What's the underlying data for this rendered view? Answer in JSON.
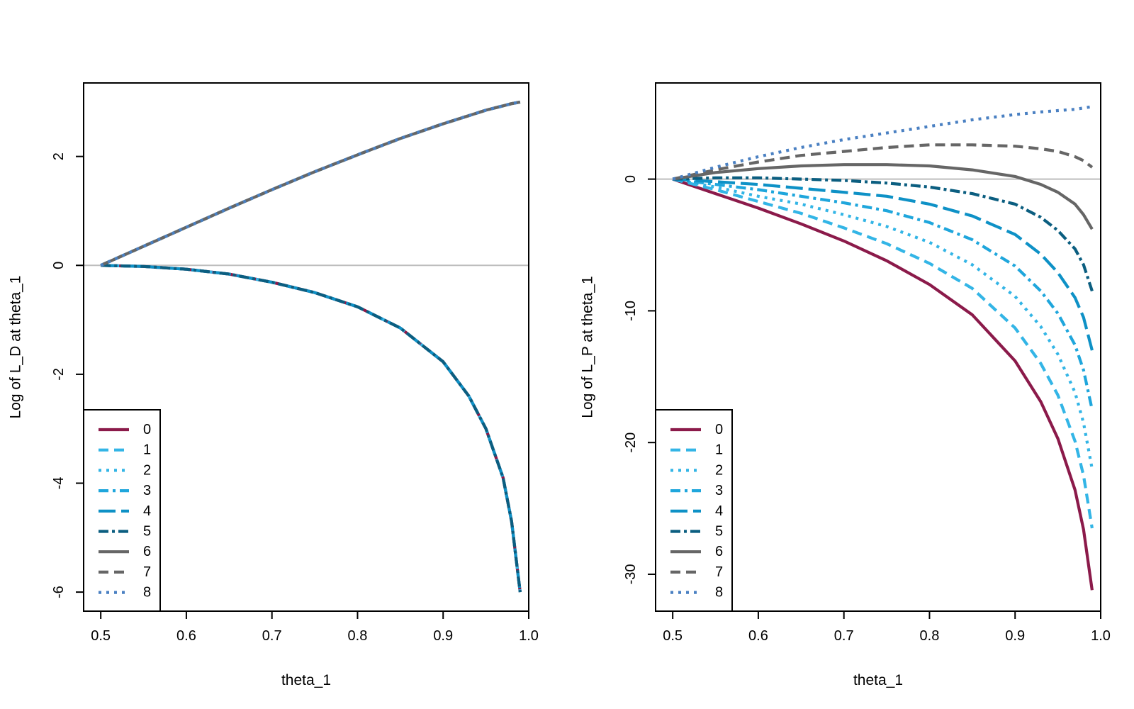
{
  "palette": {
    "0": "#8B1A4A",
    "1": "#33B5E6",
    "2": "#33B5E6",
    "3": "#1FA6DC",
    "4": "#0E91C6",
    "5": "#0B5E80",
    "6": "#666666",
    "7": "#666666",
    "8": "#4A80C2",
    "zero_line": "#BEBEBE"
  },
  "chart_data": [
    {
      "type": "line",
      "xlabel": "theta_1",
      "ylabel": "Log of L_D at theta_1",
      "xlim": [
        0.48,
        1.0
      ],
      "ylim": [
        -6.35,
        3.35
      ],
      "xticks": [
        "0.5",
        "0.6",
        "0.7",
        "0.8",
        "0.9",
        "1.0"
      ],
      "yticks": [
        "-6",
        "-4",
        "-2",
        "0",
        "2"
      ],
      "legend": {
        "position": "bottom-left",
        "entries": [
          "0",
          "1",
          "2",
          "3",
          "4",
          "5",
          "6",
          "7",
          "8"
        ]
      },
      "hline": 0,
      "x": [
        0.5,
        0.55,
        0.6,
        0.65,
        0.7,
        0.75,
        0.8,
        0.85,
        0.9,
        0.93,
        0.95,
        0.97,
        0.98,
        0.99
      ],
      "series": [
        {
          "name": "0",
          "values": [
            0,
            -0.02,
            -0.07,
            -0.16,
            -0.31,
            -0.5,
            -0.76,
            -1.15,
            -1.77,
            -2.4,
            -3.0,
            -3.9,
            -4.7,
            -6.0
          ]
        },
        {
          "name": "1",
          "values": [
            0,
            0.35,
            0.7,
            1.05,
            1.39,
            1.72,
            2.03,
            2.33,
            2.6,
            2.75,
            2.85,
            2.93,
            2.97,
            3.0
          ]
        },
        {
          "name": "2",
          "values": [
            0,
            -0.02,
            -0.07,
            -0.16,
            -0.31,
            -0.5,
            -0.76,
            -1.15,
            -1.77,
            -2.4,
            -3.0,
            -3.9,
            -4.7,
            -6.0
          ]
        },
        {
          "name": "3",
          "values": [
            0,
            0.35,
            0.7,
            1.05,
            1.39,
            1.72,
            2.03,
            2.33,
            2.6,
            2.75,
            2.85,
            2.93,
            2.97,
            3.0
          ]
        },
        {
          "name": "4",
          "values": [
            0,
            -0.02,
            -0.07,
            -0.16,
            -0.31,
            -0.5,
            -0.76,
            -1.15,
            -1.77,
            -2.4,
            -3.0,
            -3.9,
            -4.7,
            -6.0
          ]
        },
        {
          "name": "5",
          "values": [
            0,
            -0.02,
            -0.07,
            -0.16,
            -0.31,
            -0.5,
            -0.76,
            -1.15,
            -1.77,
            -2.4,
            -3.0,
            -3.9,
            -4.7,
            -6.0
          ]
        },
        {
          "name": "6",
          "values": [
            0,
            0.35,
            0.7,
            1.05,
            1.39,
            1.72,
            2.03,
            2.33,
            2.6,
            2.75,
            2.85,
            2.93,
            2.97,
            3.0
          ]
        },
        {
          "name": "7",
          "values": [
            0,
            0.35,
            0.7,
            1.05,
            1.39,
            1.72,
            2.03,
            2.33,
            2.6,
            2.75,
            2.85,
            2.93,
            2.97,
            3.0
          ]
        },
        {
          "name": "8",
          "values": [
            0,
            0.35,
            0.7,
            1.05,
            1.39,
            1.72,
            2.03,
            2.33,
            2.6,
            2.75,
            2.85,
            2.93,
            2.97,
            3.0
          ]
        }
      ]
    },
    {
      "type": "line",
      "xlabel": "theta_1",
      "ylabel": "Log of L_P at theta_1",
      "xlim": [
        0.48,
        1.0
      ],
      "ylim": [
        -32.8,
        7.3
      ],
      "xticks": [
        "0.5",
        "0.6",
        "0.7",
        "0.8",
        "0.9",
        "1.0"
      ],
      "yticks": [
        "-30",
        "-20",
        "-10",
        "0"
      ],
      "legend": {
        "position": "bottom-left",
        "entries": [
          "0",
          "1",
          "2",
          "3",
          "4",
          "5",
          "6",
          "7",
          "8"
        ]
      },
      "hline": 0,
      "x": [
        0.5,
        0.55,
        0.6,
        0.65,
        0.7,
        0.75,
        0.8,
        0.85,
        0.9,
        0.93,
        0.95,
        0.97,
        0.98,
        0.99
      ],
      "series": [
        {
          "name": "0",
          "values": [
            0,
            -1.1,
            -2.2,
            -3.4,
            -4.7,
            -6.2,
            -8.0,
            -10.3,
            -13.8,
            -16.9,
            -19.7,
            -23.6,
            -26.6,
            -31.2
          ]
        },
        {
          "name": "1",
          "values": [
            0,
            -0.8,
            -1.7,
            -2.6,
            -3.7,
            -4.9,
            -6.4,
            -8.3,
            -11.3,
            -14.0,
            -16.4,
            -19.9,
            -22.5,
            -26.5
          ]
        },
        {
          "name": "2",
          "values": [
            0,
            -0.6,
            -1.3,
            -1.9,
            -2.7,
            -3.6,
            -4.8,
            -6.5,
            -8.9,
            -11.2,
            -13.3,
            -16.2,
            -18.5,
            -22.0
          ]
        },
        {
          "name": "3",
          "values": [
            0,
            -0.4,
            -0.8,
            -1.3,
            -1.8,
            -2.4,
            -3.3,
            -4.6,
            -6.6,
            -8.5,
            -10.2,
            -12.6,
            -14.5,
            -17.5
          ]
        },
        {
          "name": "4",
          "values": [
            0,
            -0.2,
            -0.4,
            -0.7,
            -1.0,
            -1.3,
            -1.9,
            -2.8,
            -4.2,
            -5.7,
            -7.1,
            -9.0,
            -10.5,
            -13.0
          ]
        },
        {
          "name": "5",
          "values": [
            0,
            0.1,
            0.1,
            0.0,
            -0.1,
            -0.3,
            -0.6,
            -1.1,
            -1.9,
            -2.9,
            -3.9,
            -5.3,
            -6.5,
            -8.5
          ]
        },
        {
          "name": "6",
          "values": [
            0,
            0.5,
            0.8,
            1.0,
            1.1,
            1.1,
            1.0,
            0.7,
            0.2,
            -0.4,
            -1.0,
            -1.9,
            -2.7,
            -3.8
          ]
        },
        {
          "name": "7",
          "values": [
            0,
            0.7,
            1.3,
            1.8,
            2.1,
            2.4,
            2.6,
            2.6,
            2.5,
            2.3,
            2.1,
            1.7,
            1.4,
            0.9
          ]
        },
        {
          "name": "8",
          "values": [
            0,
            0.9,
            1.7,
            2.4,
            3.0,
            3.5,
            4.0,
            4.5,
            4.9,
            5.1,
            5.2,
            5.3,
            5.4,
            5.5
          ]
        }
      ]
    }
  ]
}
